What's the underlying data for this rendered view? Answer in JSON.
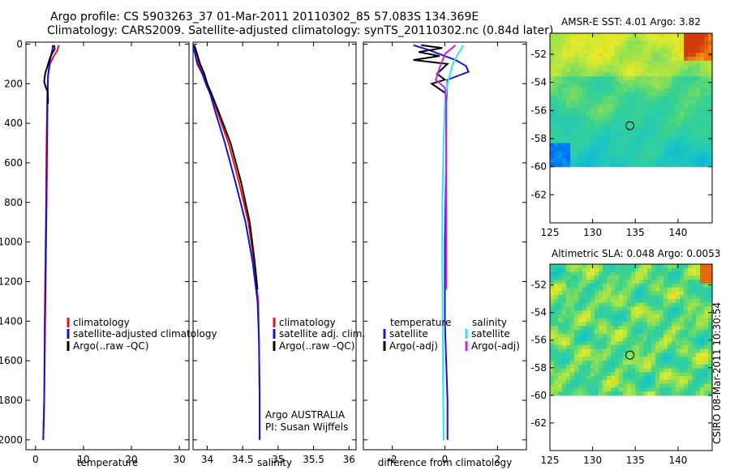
{
  "header": {
    "title_line1": "Argo profile: CS 5903263_37 01-Mar-2011 20110302_85 57.083S 134.369E",
    "title_line2": "Climatology: CARS2009. Satellite-adjusted climatology: synTS_20110302.nc (0.84d later)"
  },
  "footer": {
    "stamp": "CSIRO 08-Mar-2011 10:30:54"
  },
  "colors": {
    "red": "#e8141e",
    "blue": "#1414d0",
    "black": "#000000",
    "cyan": "#2ee6e6",
    "magenta": "#d81ed8"
  },
  "chart_data": [
    {
      "id": "temperature",
      "type": "line",
      "xlabel": "temperature",
      "ylabel": "",
      "xlim": [
        -2,
        32
      ],
      "ylim": [
        2050,
        -10
      ],
      "xticks": [
        0,
        10,
        20,
        30
      ],
      "yticks": [
        0,
        200,
        400,
        600,
        800,
        1000,
        1200,
        1400,
        1600,
        1800,
        2000
      ],
      "legend": {
        "position": "bottom-right",
        "entries": [
          "climatology",
          "satellite-adjusted climatology",
          "Argo(..raw -QC)"
        ]
      },
      "series": [
        {
          "name": "climatology",
          "color": "red",
          "x": [
            4.8,
            4.6,
            3.8,
            3.0,
            2.6,
            2.4,
            2.3,
            2.2,
            2.1,
            1.9,
            1.8,
            1.6
          ],
          "y": [
            5,
            30,
            60,
            100,
            160,
            300,
            500,
            800,
            1000,
            1400,
            1800,
            2000
          ]
        },
        {
          "name": "satellite-adjusted climatology",
          "color": "blue",
          "x": [
            3.6,
            3.5,
            3.2,
            2.9,
            2.6,
            2.5,
            2.4,
            2.3,
            2.2,
            2.0,
            1.8,
            1.6
          ],
          "y": [
            5,
            30,
            60,
            100,
            160,
            300,
            500,
            800,
            1000,
            1400,
            1800,
            2000
          ]
        },
        {
          "name": "Argo(..raw -QC)",
          "color": "black",
          "x": [
            3.9,
            4.0,
            3.5,
            3.0,
            2.0,
            1.8,
            2.1,
            2.5,
            2.6,
            2.6
          ],
          "y": [
            5,
            25,
            45,
            70,
            150,
            190,
            215,
            240,
            270,
            300
          ]
        }
      ]
    },
    {
      "id": "salinity",
      "type": "line",
      "xlabel": "salinity",
      "xlim": [
        33.8,
        36.1
      ],
      "ylim": [
        2050,
        -10
      ],
      "xticks": [
        34,
        34.5,
        35,
        35.5,
        36
      ],
      "yticks": [
        0,
        200,
        400,
        600,
        800,
        1000,
        1200,
        1400,
        1600,
        1800,
        2000
      ],
      "legend": {
        "position": "bottom-right",
        "entries": [
          "climatology",
          "satellite adj. clim.",
          "Argo(..raw -QC)"
        ]
      },
      "annotation": [
        "Argo AUSTRALIA",
        "PI: Susan Wijffels"
      ],
      "series": [
        {
          "name": "climatology",
          "color": "red",
          "x": [
            33.82,
            33.88,
            33.95,
            34.0,
            34.05,
            34.15,
            34.3,
            34.45,
            34.58,
            34.66,
            34.72,
            34.73,
            34.74,
            34.74
          ],
          "y": [
            5,
            100,
            150,
            200,
            250,
            350,
            500,
            700,
            900,
            1100,
            1300,
            1500,
            1800,
            2000
          ]
        },
        {
          "name": "satellite adj. clim.",
          "color": "blue",
          "x": [
            33.8,
            33.86,
            33.93,
            33.98,
            34.04,
            34.12,
            34.25,
            34.4,
            34.54,
            34.64,
            34.71,
            34.73,
            34.74,
            34.74
          ],
          "y": [
            5,
            100,
            150,
            200,
            250,
            350,
            500,
            700,
            900,
            1100,
            1300,
            1500,
            1800,
            2000
          ]
        },
        {
          "name": "Argo(..raw -QC)",
          "color": "black",
          "x": [
            33.82,
            33.9,
            33.96,
            34.0,
            34.06,
            34.17,
            34.33,
            34.48,
            34.6,
            34.67,
            34.71
          ],
          "y": [
            5,
            100,
            150,
            200,
            250,
            350,
            500,
            700,
            900,
            1100,
            1240
          ]
        }
      ]
    },
    {
      "id": "difference",
      "type": "line",
      "xlabel": "difference from climatology",
      "xlim": [
        -3.1,
        3.1
      ],
      "ylim": [
        2050,
        -10
      ],
      "xticks": [
        -2,
        0,
        2
      ],
      "yticks": [
        0,
        200,
        400,
        600,
        800,
        1000,
        1200,
        1400,
        1600,
        1800,
        2000
      ],
      "legend": {
        "position": "bottom",
        "temperature_header": "temperature",
        "salinity_header": "salinity",
        "entries": [
          "satellite",
          "Argo(-adj)",
          "satellite",
          "Argo(-adj)"
        ]
      },
      "series": [
        {
          "name": "temperature satellite",
          "color": "blue",
          "x": [
            -1.2,
            -0.6,
            0.4,
            0.8,
            0.9,
            0.5,
            0.1,
            0.05,
            0.05,
            0.0,
            0.0,
            0.1,
            0.1
          ],
          "y": [
            5,
            30,
            80,
            110,
            140,
            160,
            180,
            300,
            600,
            1000,
            1400,
            1800,
            2000
          ]
        },
        {
          "name": "temperature Argo(-adj)",
          "color": "black",
          "x": [
            -0.9,
            -0.1,
            -1.0,
            -0.2,
            -1.2,
            0.1,
            -0.3,
            0.0,
            -0.5,
            0.05,
            0.0
          ],
          "y": [
            5,
            20,
            40,
            60,
            80,
            100,
            150,
            180,
            200,
            250,
            300
          ]
        },
        {
          "name": "salinity satellite",
          "color": "cyan",
          "x": [
            0.7,
            0.5,
            0.3,
            0.1,
            0.0,
            -0.05,
            -0.1,
            -0.1,
            -0.08,
            -0.05
          ],
          "y": [
            5,
            50,
            100,
            200,
            300,
            500,
            800,
            1100,
            1500,
            2000
          ]
        },
        {
          "name": "salinity Argo(-adj)",
          "color": "magenta",
          "x": [
            0.4,
            0.0,
            -0.2,
            -0.35,
            0.0,
            0.05,
            0.05,
            0.05,
            0.05
          ],
          "y": [
            5,
            50,
            120,
            180,
            220,
            300,
            500,
            800,
            1240
          ]
        }
      ]
    },
    {
      "id": "sst_map",
      "type": "heatmap",
      "title": "AMSR-E SST: 4.01 Argo: 3.82",
      "xlim": [
        125,
        144
      ],
      "ylim": [
        -64,
        -50.5
      ],
      "xticks": [
        125,
        130,
        135,
        140
      ],
      "yticks": [
        -52,
        -54,
        -56,
        -58,
        -60,
        -62
      ],
      "marker": {
        "lon": 134.369,
        "lat": -57.083
      },
      "data_extent_lat": [
        -60,
        -50.5
      ]
    },
    {
      "id": "sla_map",
      "type": "heatmap",
      "title": "Altimetric SLA: 0.048 Argo: 0.0053",
      "xlim": [
        125,
        144
      ],
      "ylim": [
        -64,
        -50.5
      ],
      "xticks": [
        125,
        130,
        135,
        140
      ],
      "yticks": [
        -52,
        -54,
        -56,
        -58,
        -60,
        -62
      ],
      "marker": {
        "lon": 134.369,
        "lat": -57.083
      },
      "data_extent_lat": [
        -60,
        -50.5
      ]
    }
  ]
}
